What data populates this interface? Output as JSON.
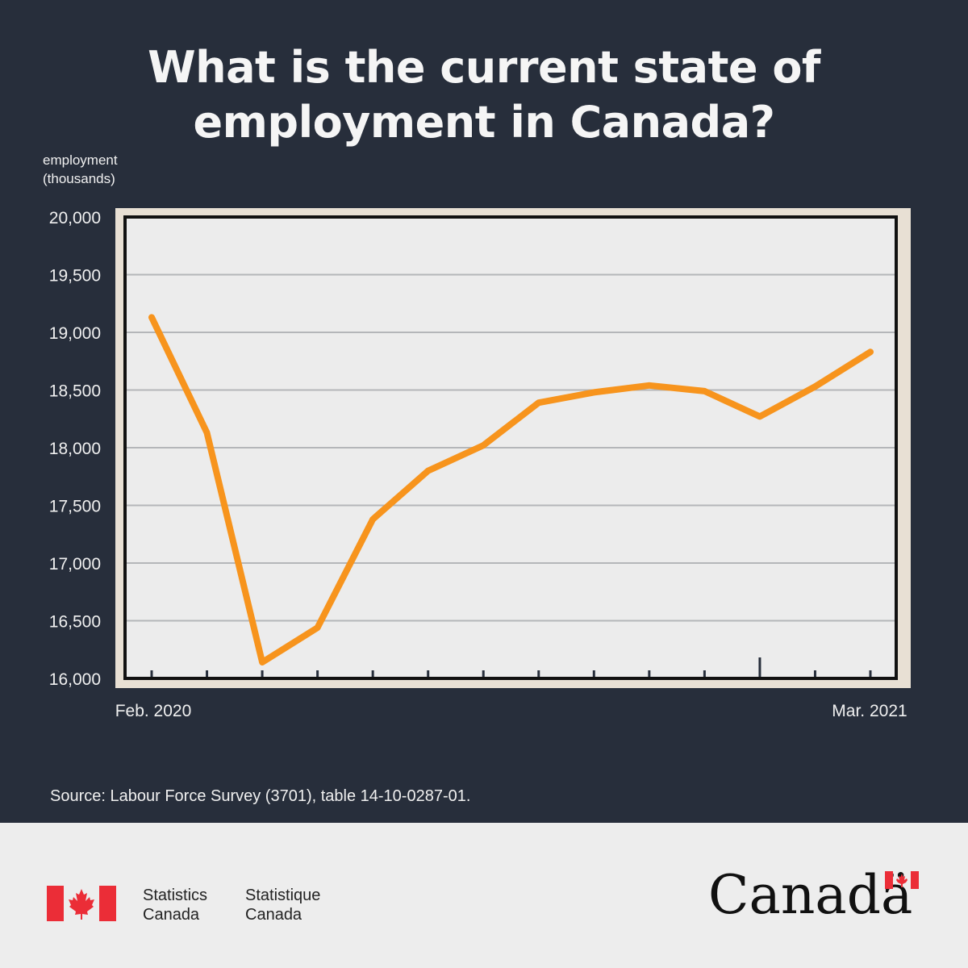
{
  "title": {
    "line1": "What is the current state of",
    "line2": "employment in Canada?"
  },
  "y_axis_label": {
    "line1": "employment",
    "line2": "(thousands)"
  },
  "source": "Source: Labour Force Survey (3701), table 14-10-0287-01.",
  "footer": {
    "agency_en": {
      "line1": "Statistics",
      "line2": "Canada"
    },
    "agency_fr": {
      "line1": "Statistique",
      "line2": "Canada"
    },
    "wordmark": "Canadä"
  },
  "colors": {
    "background": "#272e3b",
    "plot_frame": "#e8e0d4",
    "plot_area": "#ececec",
    "gridline": "#b4b6b9",
    "line": "#f7941d",
    "flag_red": "#eb2d37"
  },
  "icons": [
    "canada-flag-icon",
    "maple-leaf-icon"
  ],
  "chart_data": {
    "type": "line",
    "xlabel": "",
    "ylabel": "employment (thousands)",
    "x_tick_labels": [
      "Feb. 2020",
      "Mar. 2021"
    ],
    "x": [
      "2020-02",
      "2020-03",
      "2020-04",
      "2020-05",
      "2020-06",
      "2020-07",
      "2020-08",
      "2020-09",
      "2020-10",
      "2020-11",
      "2020-12",
      "2021-01",
      "2021-02",
      "2021-03"
    ],
    "series": [
      {
        "values": [
          19130,
          18130,
          16140,
          16440,
          17380,
          17800,
          18020,
          18390,
          18480,
          18540,
          18490,
          18270,
          18530,
          18830
        ]
      }
    ],
    "ylim": [
      16000,
      20000
    ],
    "yticks": [
      16000,
      16500,
      17000,
      17500,
      18000,
      18500,
      19000,
      19500,
      20000
    ],
    "grid": true,
    "legend": "none"
  }
}
